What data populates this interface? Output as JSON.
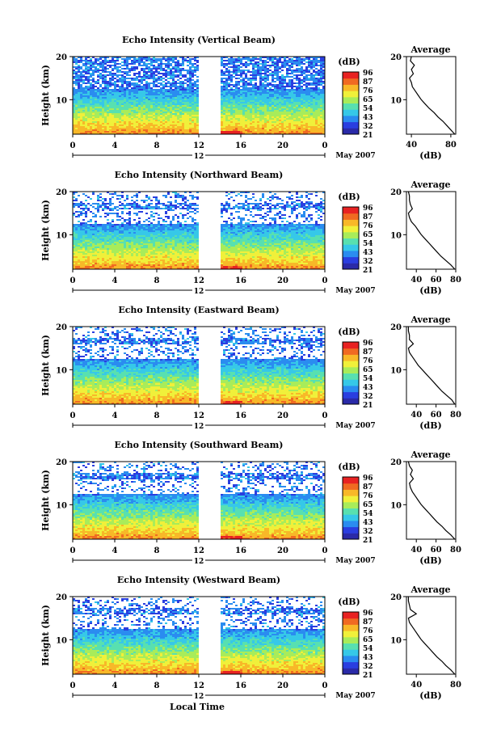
{
  "figure": {
    "xlabel_bottom": "Local Time",
    "colorbar_unit": "(dB)",
    "date_label": "May 2007",
    "date_day": "12",
    "avg_title": "Average",
    "avg_xlabel": "(dB)",
    "ylabel": "Height (km)"
  },
  "colors": {
    "scale": [
      "#2a2aa8",
      "#2a3ee0",
      "#2a8cf0",
      "#36c8e8",
      "#58e0b0",
      "#a8ec5a",
      "#f0f03a",
      "#f8b828",
      "#f06a22",
      "#e82222"
    ]
  },
  "chart_data": [
    {
      "type": "heatmap",
      "title": "Echo Intensity (Vertical Beam)",
      "xlabel": "",
      "ylabel": "Height (km)",
      "xlim": [
        0,
        24
      ],
      "ylim": [
        2,
        20
      ],
      "xticks": [
        "0",
        "4",
        "8",
        "12",
        "16",
        "20",
        "0"
      ],
      "yticks": [
        "20",
        "10"
      ],
      "data_gap_hours": [
        12,
        14
      ],
      "colorbar": {
        "label": "(dB)",
        "ticks": [
          "96",
          "87",
          "76",
          "65",
          "54",
          "43",
          "32",
          "21"
        ]
      },
      "profile": {
        "title": "Average",
        "xlabel": "(dB)",
        "xticks": [
          40,
          80
        ],
        "xlim": [
          35,
          85
        ],
        "height": [
          2,
          3,
          4,
          5,
          6,
          7,
          8,
          9,
          10,
          11,
          12,
          13,
          14,
          15,
          16,
          17,
          18,
          19,
          20
        ],
        "value": [
          84,
          80,
          76,
          72,
          67,
          63,
          58,
          54,
          50,
          47,
          44,
          41,
          40,
          38,
          42,
          40,
          43,
          39,
          40
        ]
      }
    },
    {
      "type": "heatmap",
      "title": "Echo Intensity (Northward Beam)",
      "xlabel": "",
      "ylabel": "Height (km)",
      "xlim": [
        0,
        24
      ],
      "ylim": [
        2,
        20
      ],
      "xticks": [
        "0",
        "4",
        "8",
        "12",
        "16",
        "20",
        "0"
      ],
      "yticks": [
        "20",
        "10"
      ],
      "data_gap_hours": [
        12,
        14
      ],
      "colorbar": {
        "label": "(dB)",
        "ticks": [
          "96",
          "87",
          "76",
          "65",
          "54",
          "43",
          "32",
          "21"
        ]
      },
      "profile": {
        "title": "Average",
        "xlabel": "(dB)",
        "xticks": [
          40,
          60,
          80
        ],
        "xlim": [
          30,
          80
        ],
        "height": [
          2,
          3,
          4,
          5,
          6,
          7,
          8,
          9,
          10,
          11,
          12,
          13,
          14,
          15,
          16,
          17,
          18,
          19,
          20
        ],
        "value": [
          79,
          75,
          70,
          65,
          61,
          57,
          53,
          49,
          45,
          42,
          39,
          35,
          33,
          32,
          36,
          34,
          33,
          33,
          32
        ]
      }
    },
    {
      "type": "heatmap",
      "title": "Echo Intensity (Eastward Beam)",
      "xlabel": "",
      "ylabel": "Height (km)",
      "xlim": [
        0,
        24
      ],
      "ylim": [
        2,
        20
      ],
      "xticks": [
        "0",
        "4",
        "8",
        "12",
        "16",
        "20",
        "0"
      ],
      "yticks": [
        "20",
        "10"
      ],
      "data_gap_hours": [
        12,
        14
      ],
      "colorbar": {
        "label": "(dB)",
        "ticks": [
          "96",
          "87",
          "76",
          "65",
          "54",
          "43",
          "32",
          "21"
        ]
      },
      "profile": {
        "title": "Average",
        "xlabel": "(dB)",
        "xticks": [
          40,
          60,
          80
        ],
        "xlim": [
          30,
          80
        ],
        "height": [
          2,
          3,
          4,
          5,
          6,
          7,
          8,
          9,
          10,
          11,
          12,
          13,
          14,
          15,
          16,
          17,
          18,
          19,
          20
        ],
        "value": [
          79,
          76,
          71,
          66,
          62,
          58,
          54,
          50,
          46,
          42,
          39,
          36,
          33,
          32,
          37,
          33,
          33,
          32,
          32
        ]
      }
    },
    {
      "type": "heatmap",
      "title": "Echo Intensity (Southward Beam)",
      "xlabel": "",
      "ylabel": "Height (km)",
      "xlim": [
        0,
        24
      ],
      "ylim": [
        2,
        20
      ],
      "xticks": [
        "0",
        "4",
        "8",
        "12",
        "16",
        "20",
        "0"
      ],
      "yticks": [
        "20",
        "10"
      ],
      "data_gap_hours": [
        12,
        14
      ],
      "colorbar": {
        "label": "(dB)",
        "ticks": [
          "96",
          "87",
          "76",
          "65",
          "54",
          "43",
          "32",
          "21"
        ]
      },
      "profile": {
        "title": "Average",
        "xlabel": "(dB)",
        "xticks": [
          40,
          60,
          80
        ],
        "xlim": [
          30,
          80
        ],
        "height": [
          2,
          3,
          4,
          5,
          6,
          7,
          8,
          9,
          10,
          11,
          12,
          13,
          14,
          15,
          16,
          17,
          18,
          19,
          20
        ],
        "value": [
          79,
          75,
          70,
          66,
          61,
          57,
          53,
          49,
          45,
          42,
          39,
          36,
          34,
          33,
          37,
          34,
          36,
          33,
          32
        ]
      }
    },
    {
      "type": "heatmap",
      "title": "Echo Intensity (Westward Beam)",
      "xlabel": "",
      "ylabel": "Height (km)",
      "xlim": [
        0,
        24
      ],
      "ylim": [
        2,
        20
      ],
      "xticks": [
        "0",
        "4",
        "8",
        "12",
        "16",
        "20",
        "0"
      ],
      "yticks": [
        "20",
        "10"
      ],
      "data_gap_hours": [
        12,
        14
      ],
      "colorbar": {
        "label": "(dB)",
        "ticks": [
          "96",
          "87",
          "76",
          "65",
          "54",
          "43",
          "32",
          "21"
        ]
      },
      "profile": {
        "title": "Average",
        "xlabel": "(dB)",
        "xticks": [
          40,
          80
        ],
        "xlim": [
          30,
          80
        ],
        "height": [
          2,
          3,
          4,
          5,
          6,
          7,
          8,
          9,
          10,
          11,
          12,
          13,
          14,
          15,
          16,
          17,
          18,
          19,
          20
        ],
        "value": [
          79,
          75,
          70,
          66,
          61,
          57,
          53,
          49,
          45,
          42,
          39,
          36,
          33,
          32,
          40,
          34,
          33,
          32,
          32
        ]
      }
    }
  ]
}
